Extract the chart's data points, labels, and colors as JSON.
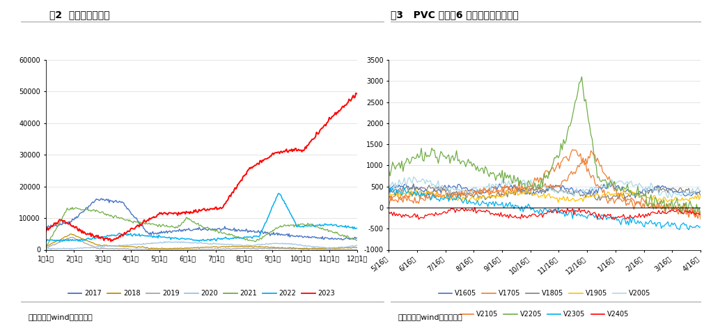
{
  "fig2_title": "图2  注册仓单季节性",
  "fig3_title": "图3   PVC 基差（6 月来盘面升水现货）",
  "source_text": "资料来源：wind，正信期货",
  "fig2_x_labels": [
    "1月1日",
    "2月1日",
    "3月1日",
    "4月1日",
    "5月1日",
    "6月1日",
    "7月1日",
    "8月1日",
    "9月1日",
    "10月1日",
    "11月1日",
    "12月1日"
  ],
  "fig2_ylim": [
    0,
    60000
  ],
  "fig2_yticks": [
    0,
    10000,
    20000,
    30000,
    40000,
    50000,
    60000
  ],
  "fig3_x_labels": [
    "5/16日",
    "6/16日",
    "7/16日",
    "8/16日",
    "9/16日",
    "10/16日",
    "11/16日",
    "12/16日",
    "1/16日",
    "2/16日",
    "3/16日",
    "4/16日"
  ],
  "fig3_ylim": [
    -1000,
    3500
  ],
  "fig3_yticks": [
    -1000,
    -500,
    0,
    500,
    1000,
    1500,
    2000,
    2500,
    3000,
    3500
  ],
  "colors2": {
    "2017": "#4472C4",
    "2018": "#BF9000",
    "2019": "#A6A6A6",
    "2020": "#9DC3E6",
    "2021": "#70AD47",
    "2022": "#00B0F0",
    "2023": "#FF0000"
  },
  "colors3": {
    "V1605": "#4472C4",
    "V1705": "#ED7D31",
    "V1805": "#808080",
    "V1905": "#FFC000",
    "V2005": "#ADD8E6",
    "V2105": "#ED7D31",
    "V2205": "#70AD47",
    "V2305": "#00B0F0",
    "V2405": "#FF0000"
  },
  "background_color": "#FFFFFF",
  "grid_color": "#D9D9D9"
}
